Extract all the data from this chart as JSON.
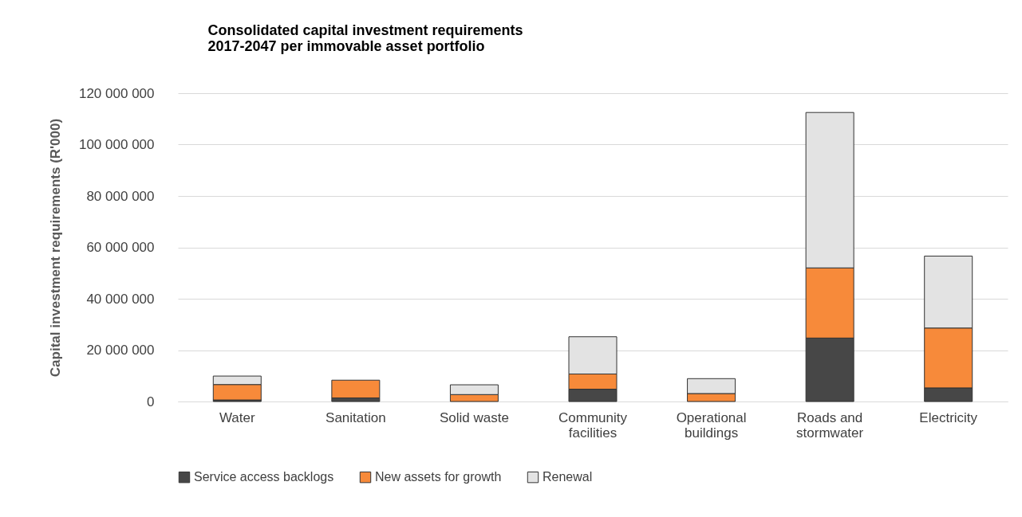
{
  "chart_data": {
    "type": "bar",
    "title": "Consolidated capital investment requirements 2017-2047 per immovable asset portfolio",
    "ylabel": "Capital investment requirements (R'000)",
    "categories": [
      "Water",
      "Sanitation",
      "Solid waste",
      "Community facilities",
      "Operational buildings",
      "Roads and stormwater",
      "Electricity"
    ],
    "stacked": true,
    "series": [
      {
        "name": "Service access backlogs",
        "color": "#474747",
        "values": [
          600000,
          1400000,
          0,
          4800000,
          0,
          24700000,
          5300000
        ]
      },
      {
        "name": "New assets for growth",
        "color": "#f78a3a",
        "values": [
          6000000,
          6900000,
          2700000,
          5900000,
          3100000,
          27300000,
          23300000
        ]
      },
      {
        "name": "Renewal",
        "color": "#e3e3e3",
        "values": [
          3300000,
          0,
          3800000,
          14500000,
          5800000,
          60500000,
          28000000
        ]
      }
    ],
    "ylim": [
      0,
      120000000
    ],
    "yticks": [
      0,
      {
        "value": 20000000,
        "label": "20 000 000"
      },
      {
        "value": 40000000,
        "label": "40 000 000"
      },
      {
        "value": 60000000,
        "label": "60 000 000"
      },
      {
        "value": 80000000,
        "label": "80 000 000"
      },
      {
        "value": 100000000,
        "label": "100 000 000"
      },
      {
        "value": 120000000,
        "label": "120 000 000"
      }
    ],
    "grid": "y",
    "legend": "bottom"
  }
}
